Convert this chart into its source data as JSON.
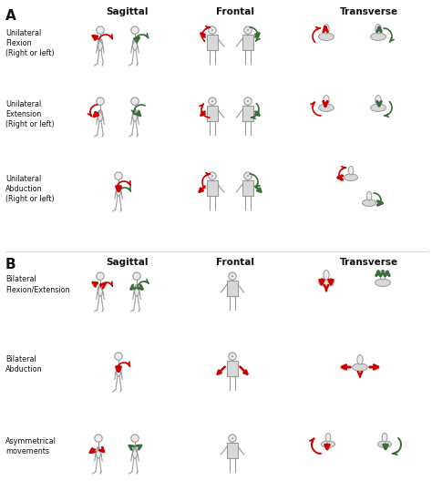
{
  "bg_color": "#ffffff",
  "red": "#cc0000",
  "green": "#3a6b3a",
  "gray_fig": "#999999",
  "gray_rect": "#d0d0d0",
  "dark": "#111111",
  "title_A": "A",
  "title_B": "B",
  "col_headers": [
    "Sagittal",
    "Frontal",
    "Transverse"
  ],
  "row_labels_A": [
    "Unilateral\nFlexion\n(Right or left)",
    "Unilateral\nExtension\n(Right or left)",
    "Unilateral\nAbduction\n(Right or left)"
  ],
  "row_labels_B": [
    "Bilateral\nFlexion/Extension",
    "Bilateral\nAbduction",
    "Asymmetrical\nmovements"
  ],
  "figsize": [
    4.74,
    5.5
  ],
  "dpi": 100
}
